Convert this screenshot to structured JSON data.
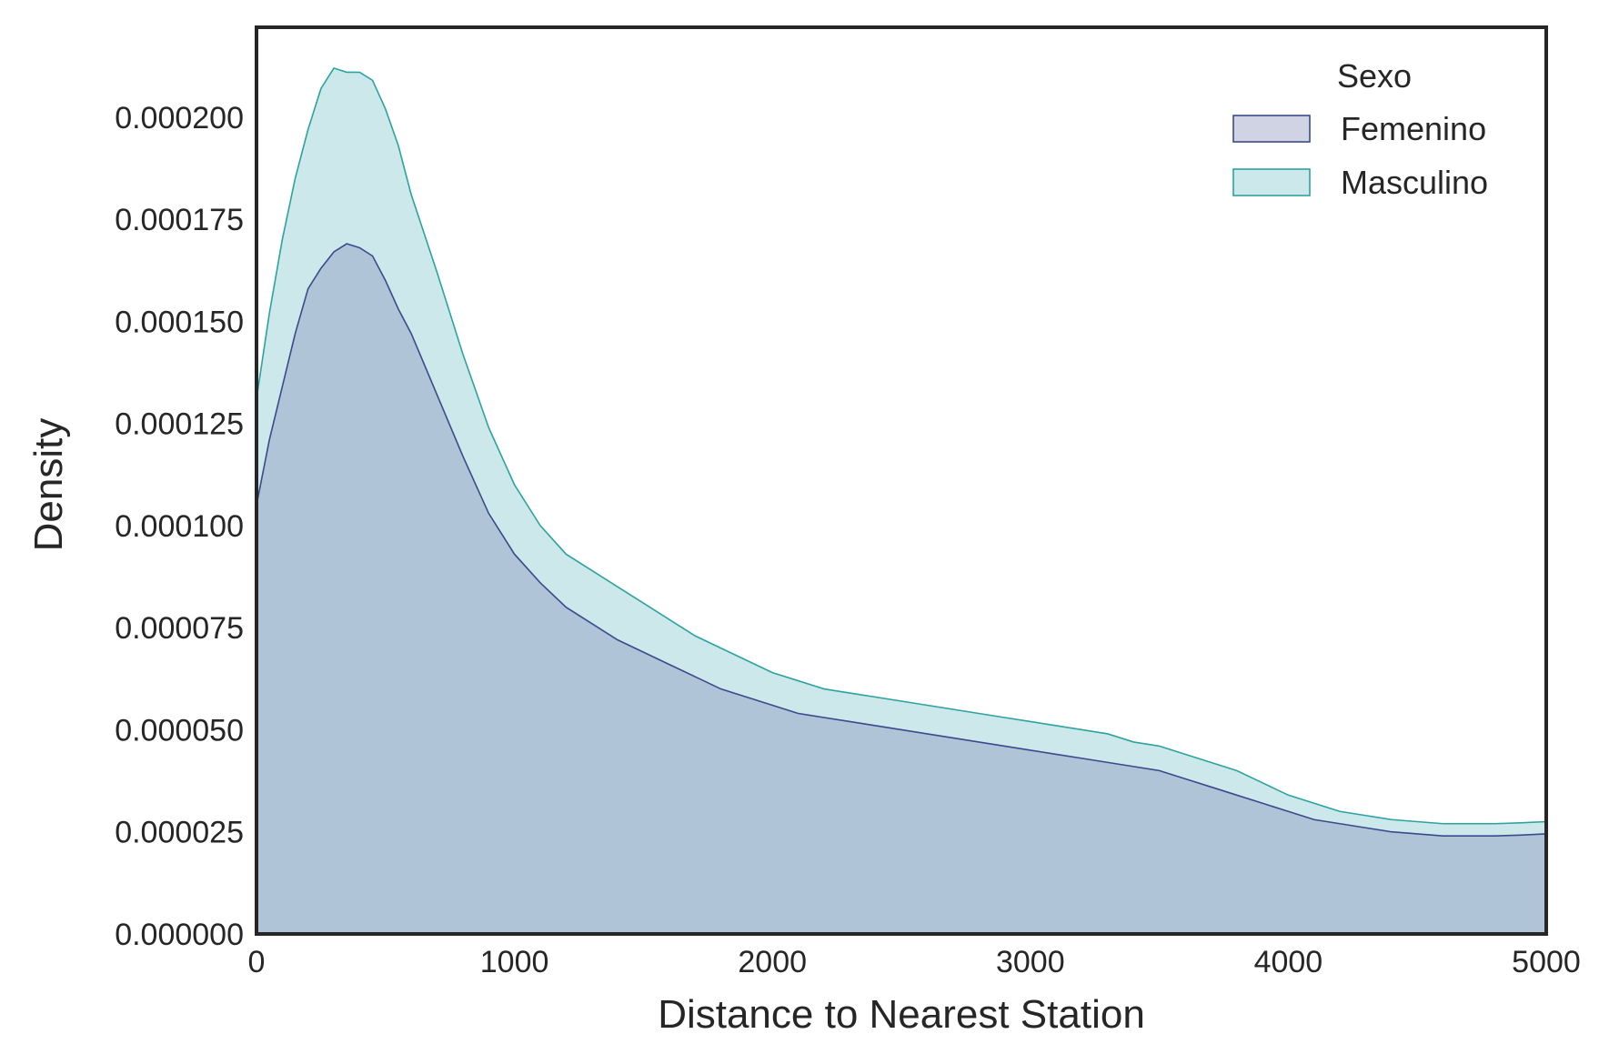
{
  "chart_data": {
    "type": "area",
    "title": "",
    "xlabel": "Distance to Nearest Station",
    "ylabel": "Density",
    "xlim": [
      0,
      5000
    ],
    "ylim": [
      0,
      0.000222
    ],
    "grid": false,
    "xticks": [
      0,
      1000,
      2000,
      3000,
      4000,
      5000
    ],
    "xtick_labels": [
      "0",
      "1000",
      "2000",
      "3000",
      "4000",
      "5000"
    ],
    "yticks": [
      0,
      2.5e-05,
      5e-05,
      7.5e-05,
      0.0001,
      0.000125,
      0.00015,
      0.000175,
      0.0002
    ],
    "ytick_labels": [
      "0.000000",
      "0.000025",
      "0.000050",
      "0.000075",
      "0.000100",
      "0.000125",
      "0.000150",
      "0.000175",
      "0.000200"
    ],
    "legend": {
      "title": "Sexo",
      "placement": "top-right"
    },
    "x": [
      0,
      50,
      100,
      150,
      200,
      250,
      300,
      350,
      400,
      450,
      500,
      550,
      600,
      700,
      800,
      900,
      1000,
      1100,
      1200,
      1300,
      1400,
      1500,
      1600,
      1700,
      1800,
      1900,
      2000,
      2100,
      2200,
      2300,
      2400,
      2500,
      2600,
      2700,
      2800,
      2900,
      3000,
      3100,
      3200,
      3300,
      3400,
      3500,
      3600,
      3700,
      3800,
      3900,
      4000,
      4100,
      4200,
      4300,
      4400,
      4500,
      4600,
      4700,
      4800,
      4900,
      5000
    ],
    "series": [
      {
        "name": "Femenino",
        "color": "#3b4a8c",
        "fill": "#a9bdd3",
        "values": [
          0.000105,
          0.000121,
          0.000134,
          0.000147,
          0.000158,
          0.000163,
          0.000167,
          0.000169,
          0.000168,
          0.000166,
          0.00016,
          0.000153,
          0.000147,
          0.000132,
          0.000117,
          0.000103,
          9.3e-05,
          8.6e-05,
          8e-05,
          7.6e-05,
          7.2e-05,
          6.9e-05,
          6.6e-05,
          6.3e-05,
          6e-05,
          5.8e-05,
          5.6e-05,
          5.4e-05,
          5.3e-05,
          5.2e-05,
          5.1e-05,
          5e-05,
          4.9e-05,
          4.8e-05,
          4.7e-05,
          4.6e-05,
          4.5e-05,
          4.4e-05,
          4.3e-05,
          4.2e-05,
          4.1e-05,
          4e-05,
          3.8e-05,
          3.6e-05,
          3.4e-05,
          3.2e-05,
          3e-05,
          2.8e-05,
          2.7e-05,
          2.6e-05,
          2.5e-05,
          2.45e-05,
          2.4e-05,
          2.4e-05,
          2.4e-05,
          2.42e-05,
          2.45e-05
        ]
      },
      {
        "name": "Masculino",
        "color": "#2ba39f",
        "fill": "#cde8ea",
        "values": [
          0.000131,
          0.000152,
          0.00017,
          0.000185,
          0.000197,
          0.000207,
          0.000212,
          0.000211,
          0.000211,
          0.000209,
          0.000202,
          0.000193,
          0.000181,
          0.000162,
          0.000142,
          0.000124,
          0.00011,
          0.0001,
          9.3e-05,
          8.9e-05,
          8.5e-05,
          8.1e-05,
          7.7e-05,
          7.3e-05,
          7e-05,
          6.7e-05,
          6.4e-05,
          6.2e-05,
          6e-05,
          5.9e-05,
          5.8e-05,
          5.7e-05,
          5.6e-05,
          5.5e-05,
          5.4e-05,
          5.3e-05,
          5.2e-05,
          5.1e-05,
          5e-05,
          4.9e-05,
          4.7e-05,
          4.6e-05,
          4.4e-05,
          4.2e-05,
          4e-05,
          3.7e-05,
          3.4e-05,
          3.2e-05,
          3e-05,
          2.9e-05,
          2.8e-05,
          2.75e-05,
          2.7e-05,
          2.7e-05,
          2.7e-05,
          2.72e-05,
          2.75e-05
        ]
      }
    ]
  }
}
